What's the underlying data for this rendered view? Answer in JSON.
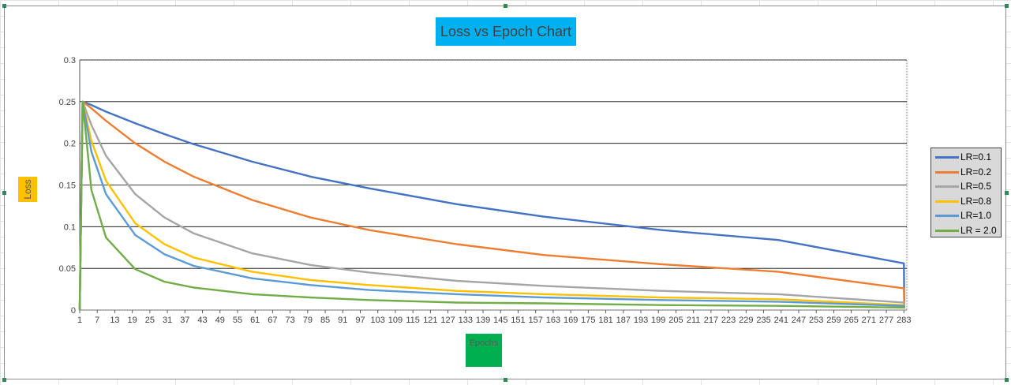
{
  "chart_data": {
    "type": "line",
    "title": "Loss vs Epoch Chart",
    "xlabel": "Epochs",
    "ylabel": "Loss",
    "x_tick_labels": [
      "1",
      "7",
      "13",
      "19",
      "25",
      "31",
      "37",
      "43",
      "49",
      "55",
      "61",
      "67",
      "73",
      "79",
      "85",
      "91",
      "97",
      "103",
      "109",
      "115",
      "121",
      "127",
      "133",
      "139",
      "145",
      "151",
      "157",
      "163",
      "169",
      "175",
      "181",
      "187",
      "193",
      "199",
      "205",
      "211",
      "217",
      "223",
      "229",
      "235",
      "241",
      "247",
      "253",
      "259",
      "265",
      "271",
      "277",
      "283"
    ],
    "y_ticks": [
      "0",
      "0.05",
      "0.1",
      "0.15",
      "0.2",
      "0.25",
      "0.3"
    ],
    "ylim": [
      0,
      0.3
    ],
    "xlim": [
      1,
      284
    ],
    "grid": "horizontal",
    "legend_position": "right",
    "x": [
      1,
      2,
      5,
      10,
      20,
      30,
      40,
      60,
      80,
      100,
      130,
      160,
      200,
      240,
      283
    ],
    "series": [
      {
        "name": "LR=0.1",
        "color": "#4472c4",
        "values": [
          0.0,
          0.25,
          0.246,
          0.238,
          0.224,
          0.211,
          0.199,
          0.178,
          0.16,
          0.146,
          0.127,
          0.112,
          0.096,
          0.084,
          0.056
        ]
      },
      {
        "name": "LR=0.2",
        "color": "#ed7d31",
        "values": [
          0.0,
          0.25,
          0.242,
          0.227,
          0.2,
          0.178,
          0.16,
          0.132,
          0.111,
          0.096,
          0.079,
          0.066,
          0.055,
          0.046,
          0.026
        ]
      },
      {
        "name": "LR=0.5",
        "color": "#a5a5a5",
        "values": [
          0.0,
          0.25,
          0.222,
          0.185,
          0.139,
          0.111,
          0.092,
          0.068,
          0.054,
          0.045,
          0.035,
          0.029,
          0.023,
          0.019,
          0.009
        ]
      },
      {
        "name": "LR=0.8",
        "color": "#ffc000",
        "values": [
          0.0,
          0.25,
          0.203,
          0.155,
          0.104,
          0.079,
          0.063,
          0.046,
          0.036,
          0.03,
          0.023,
          0.019,
          0.015,
          0.013,
          0.006
        ]
      },
      {
        "name": "LR=1.0",
        "color": "#5b9bd5",
        "values": [
          0.0,
          0.25,
          0.19,
          0.139,
          0.09,
          0.067,
          0.053,
          0.038,
          0.03,
          0.024,
          0.019,
          0.015,
          0.012,
          0.01,
          0.005
        ]
      },
      {
        "name": "LR = 2.0",
        "color": "#70ad47",
        "values": [
          0.0,
          0.25,
          0.144,
          0.087,
          0.049,
          0.034,
          0.027,
          0.019,
          0.015,
          0.012,
          0.009,
          0.008,
          0.006,
          0.005,
          0.003
        ]
      }
    ]
  }
}
